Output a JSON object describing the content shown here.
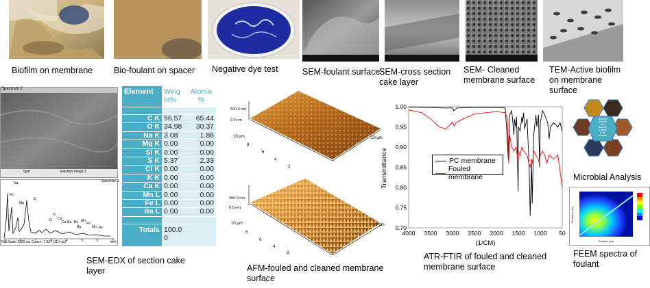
{
  "captions": {
    "biofilm": "Biofilm on membrane",
    "biofoulant": "Bio-foulant on spacer",
    "dye": "Negative dye test",
    "sem_foulant": "SEM-foulant surface",
    "sem_cross": "SEM-cross section cake layer",
    "sem_cleaned": "SEM- Cleaned membrane surface",
    "tem": "TEM-Active biofilm on membrane surface",
    "sem_edx": "SEM-EDX of section cake layer",
    "afm": "AFM-fouled and cleaned membrane surface",
    "ftir": "ATR-FTIR  of fouled and cleaned membrane surface",
    "microbial": "Microbial Analysis",
    "feem": "FEEM spectra of foulant"
  },
  "sem_edx": {
    "spectrum_label_top": "Spectrum 2",
    "scale_text": "5µm",
    "electron_image_label": "Electron Image 1",
    "spectrum_label_bottom": "Spectrum 1",
    "footer": "Full Scale 2299 cts Cursor: 7.537 (113 cts)",
    "kev": "keV",
    "x_ticks": [
      "0",
      "1",
      "2",
      "3",
      "4",
      "5",
      "6",
      "7"
    ],
    "peak_labels": [
      "Na",
      "Fe",
      "Mg",
      "S",
      "K",
      "Ca",
      "Cl",
      "Ca",
      "Ba",
      "Ba",
      "Mn",
      "Fe",
      "Ba",
      "Mn",
      "Fe"
    ]
  },
  "edx_table": {
    "header_element": "Element",
    "header_weight": [
      "Weig",
      "ht%"
    ],
    "header_atomic": [
      "Atomic",
      "%"
    ],
    "rows": [
      {
        "el": "C K",
        "w": "56.57",
        "a": "65.44"
      },
      {
        "el": "O K",
        "w": "34.98",
        "a": "30.37"
      },
      {
        "el": "Na K",
        "w": "3.08",
        "a": "1.86"
      },
      {
        "el": "Mg K",
        "w": "0.00",
        "a": "0.00"
      },
      {
        "el": "Si K",
        "w": "0.00",
        "a": "0.00"
      },
      {
        "el": "S K",
        "w": "5.37",
        "a": "2.33"
      },
      {
        "el": "Cl K",
        "w": "0.00",
        "a": "0.00"
      },
      {
        "el": "K K",
        "w": "0.00",
        "a": "0.00"
      },
      {
        "el": "Ca K",
        "w": "0.00",
        "a": "0.00"
      },
      {
        "el": "Mn L",
        "w": "0.00",
        "a": "0.00"
      },
      {
        "el": "Fe L",
        "w": "0.00",
        "a": "0.00"
      },
      {
        "el": "Ba L",
        "w": "0.00",
        "a": "0.00"
      }
    ],
    "totals_label": "Totals",
    "totals_value": [
      "100.0",
      "0"
    ]
  },
  "afm": {
    "top": {
      "z_top": "500.0 nm",
      "z_zero": "0.0 nm",
      "x_label": "10 µm",
      "y_label": "10 µm",
      "ticks": [
        "8",
        "6",
        "4",
        "2"
      ]
    },
    "bottom": {
      "z_top": "400.0 nm",
      "z_zero": "0.0 nm",
      "x_label": "10 µm",
      "y_label": "10 µm",
      "ticks": [
        "8",
        "6",
        "4",
        "2"
      ]
    }
  },
  "chart_data": {
    "type": "line",
    "xlabel": "(1/CM)",
    "ylabel": "Transmittance",
    "xlim": [
      4000,
      500
    ],
    "ylim": [
      0.7,
      1.0
    ],
    "x_ticks": [
      "4000",
      "3500",
      "3000",
      "2500",
      "2000",
      "1500",
      "1000",
      "50"
    ],
    "y_ticks": [
      "1.00",
      "0.95",
      "0.90",
      "0.85",
      "0.80",
      "0.75",
      "0.70"
    ],
    "legend_placement": "center-left",
    "series": [
      {
        "name": "PC membrane",
        "color": "#000000",
        "x": [
          4000,
          3500,
          3200,
          3000,
          2970,
          2900,
          2500,
          2000,
          1800,
          1770,
          1730,
          1700,
          1650,
          1600,
          1590,
          1560,
          1540,
          1505,
          1500,
          1460,
          1420,
          1410,
          1380,
          1360,
          1300,
          1290,
          1260,
          1230,
          1200,
          1185,
          1150,
          1100,
          1080,
          1040,
          1015,
          1000,
          950,
          900,
          830,
          800,
          770,
          700,
          600,
          550,
          500
        ],
        "y": [
          0.999,
          0.998,
          0.997,
          0.997,
          0.99,
          0.997,
          0.998,
          0.998,
          0.997,
          0.95,
          0.87,
          0.98,
          0.99,
          0.93,
          0.97,
          0.95,
          0.975,
          0.79,
          0.95,
          0.94,
          0.975,
          0.96,
          0.985,
          0.945,
          0.97,
          0.94,
          0.87,
          0.73,
          0.86,
          0.76,
          0.93,
          0.98,
          0.95,
          0.98,
          0.85,
          0.96,
          0.99,
          0.98,
          0.96,
          0.92,
          0.95,
          0.96,
          0.95,
          0.96,
          0.94
        ]
      },
      {
        "name": "Fouled membrane",
        "color": "#ff0000",
        "x": [
          4000,
          3700,
          3500,
          3300,
          3150,
          3000,
          2960,
          2920,
          2850,
          2500,
          2000,
          1800,
          1750,
          1720,
          1700,
          1650,
          1600,
          1550,
          1505,
          1500,
          1460,
          1420,
          1380,
          1300,
          1260,
          1230,
          1200,
          1180,
          1150,
          1100,
          1050,
          1020,
          1000,
          950,
          900,
          850,
          800,
          700,
          600,
          550,
          500
        ],
        "y": [
          0.992,
          0.985,
          0.97,
          0.95,
          0.945,
          0.962,
          0.952,
          0.96,
          0.965,
          0.982,
          0.988,
          0.985,
          0.97,
          0.86,
          0.93,
          0.9,
          0.89,
          0.9,
          0.86,
          0.89,
          0.88,
          0.9,
          0.89,
          0.88,
          0.86,
          0.85,
          0.87,
          0.86,
          0.89,
          0.88,
          0.87,
          0.86,
          0.88,
          0.89,
          0.88,
          0.86,
          0.88,
          0.87,
          0.88,
          0.84,
          0.8
        ]
      }
    ]
  },
  "feem": {
    "y_axis": "Excitation (nm)",
    "x_axis": "Emission (nm)",
    "colorbar_colors": [
      "#ff0000",
      "#ff8800",
      "#ffff00",
      "#88ff00",
      "#00ffff",
      "#0088ff",
      "#0000ff"
    ]
  },
  "microbial": {
    "center_text": [
      "Antibiotic",
      "Sensitive",
      "Test",
      "Bacteria",
      "& Biofilm",
      "& cell",
      "Analysis"
    ]
  }
}
